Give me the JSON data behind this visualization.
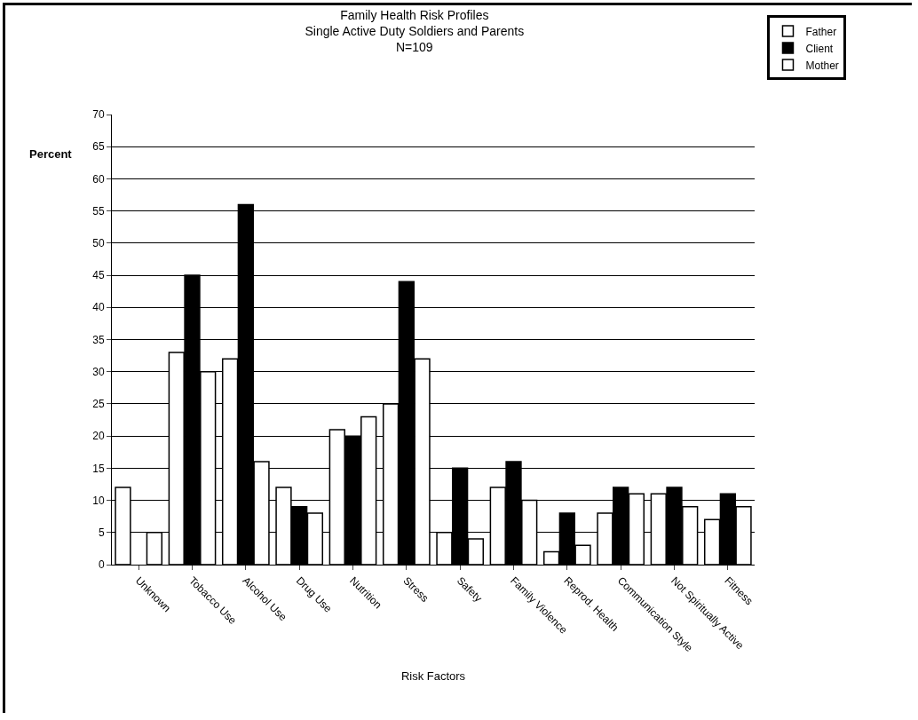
{
  "chart_data": {
    "type": "bar",
    "title": "Family Health Risk Profiles\nSingle Active Duty Soldiers and Parents\nN=109",
    "xlabel": "Risk Factors",
    "ylabel": "Percent",
    "categories": [
      "Unknown",
      "Tobacco Use",
      "Alcohol Use",
      "Drug Use",
      "Nutrition",
      "Stress",
      "Safety",
      "Family Violence",
      "Reprod. Health",
      "Communication Style",
      "Not Spiritually Active",
      "Fitness"
    ],
    "series": [
      {
        "name": "Father",
        "color": "#ffffff",
        "values": [
          12,
          33,
          32,
          12,
          21,
          25,
          5,
          12,
          2,
          8,
          11,
          7
        ]
      },
      {
        "name": "Client",
        "color": "#000000",
        "values": [
          null,
          45,
          56,
          9,
          20,
          44,
          15,
          16,
          8,
          12,
          12,
          11
        ]
      },
      {
        "name": "Mother",
        "color": "#ffffff",
        "values": [
          5,
          30,
          16,
          8,
          23,
          32,
          4,
          10,
          3,
          11,
          9,
          9
        ]
      }
    ],
    "ylim": [
      0,
      70
    ],
    "yticks": [
      0,
      5,
      10,
      15,
      20,
      25,
      30,
      35,
      40,
      45,
      50,
      55,
      60,
      65,
      70
    ],
    "grid": "y",
    "legend": "top right"
  }
}
